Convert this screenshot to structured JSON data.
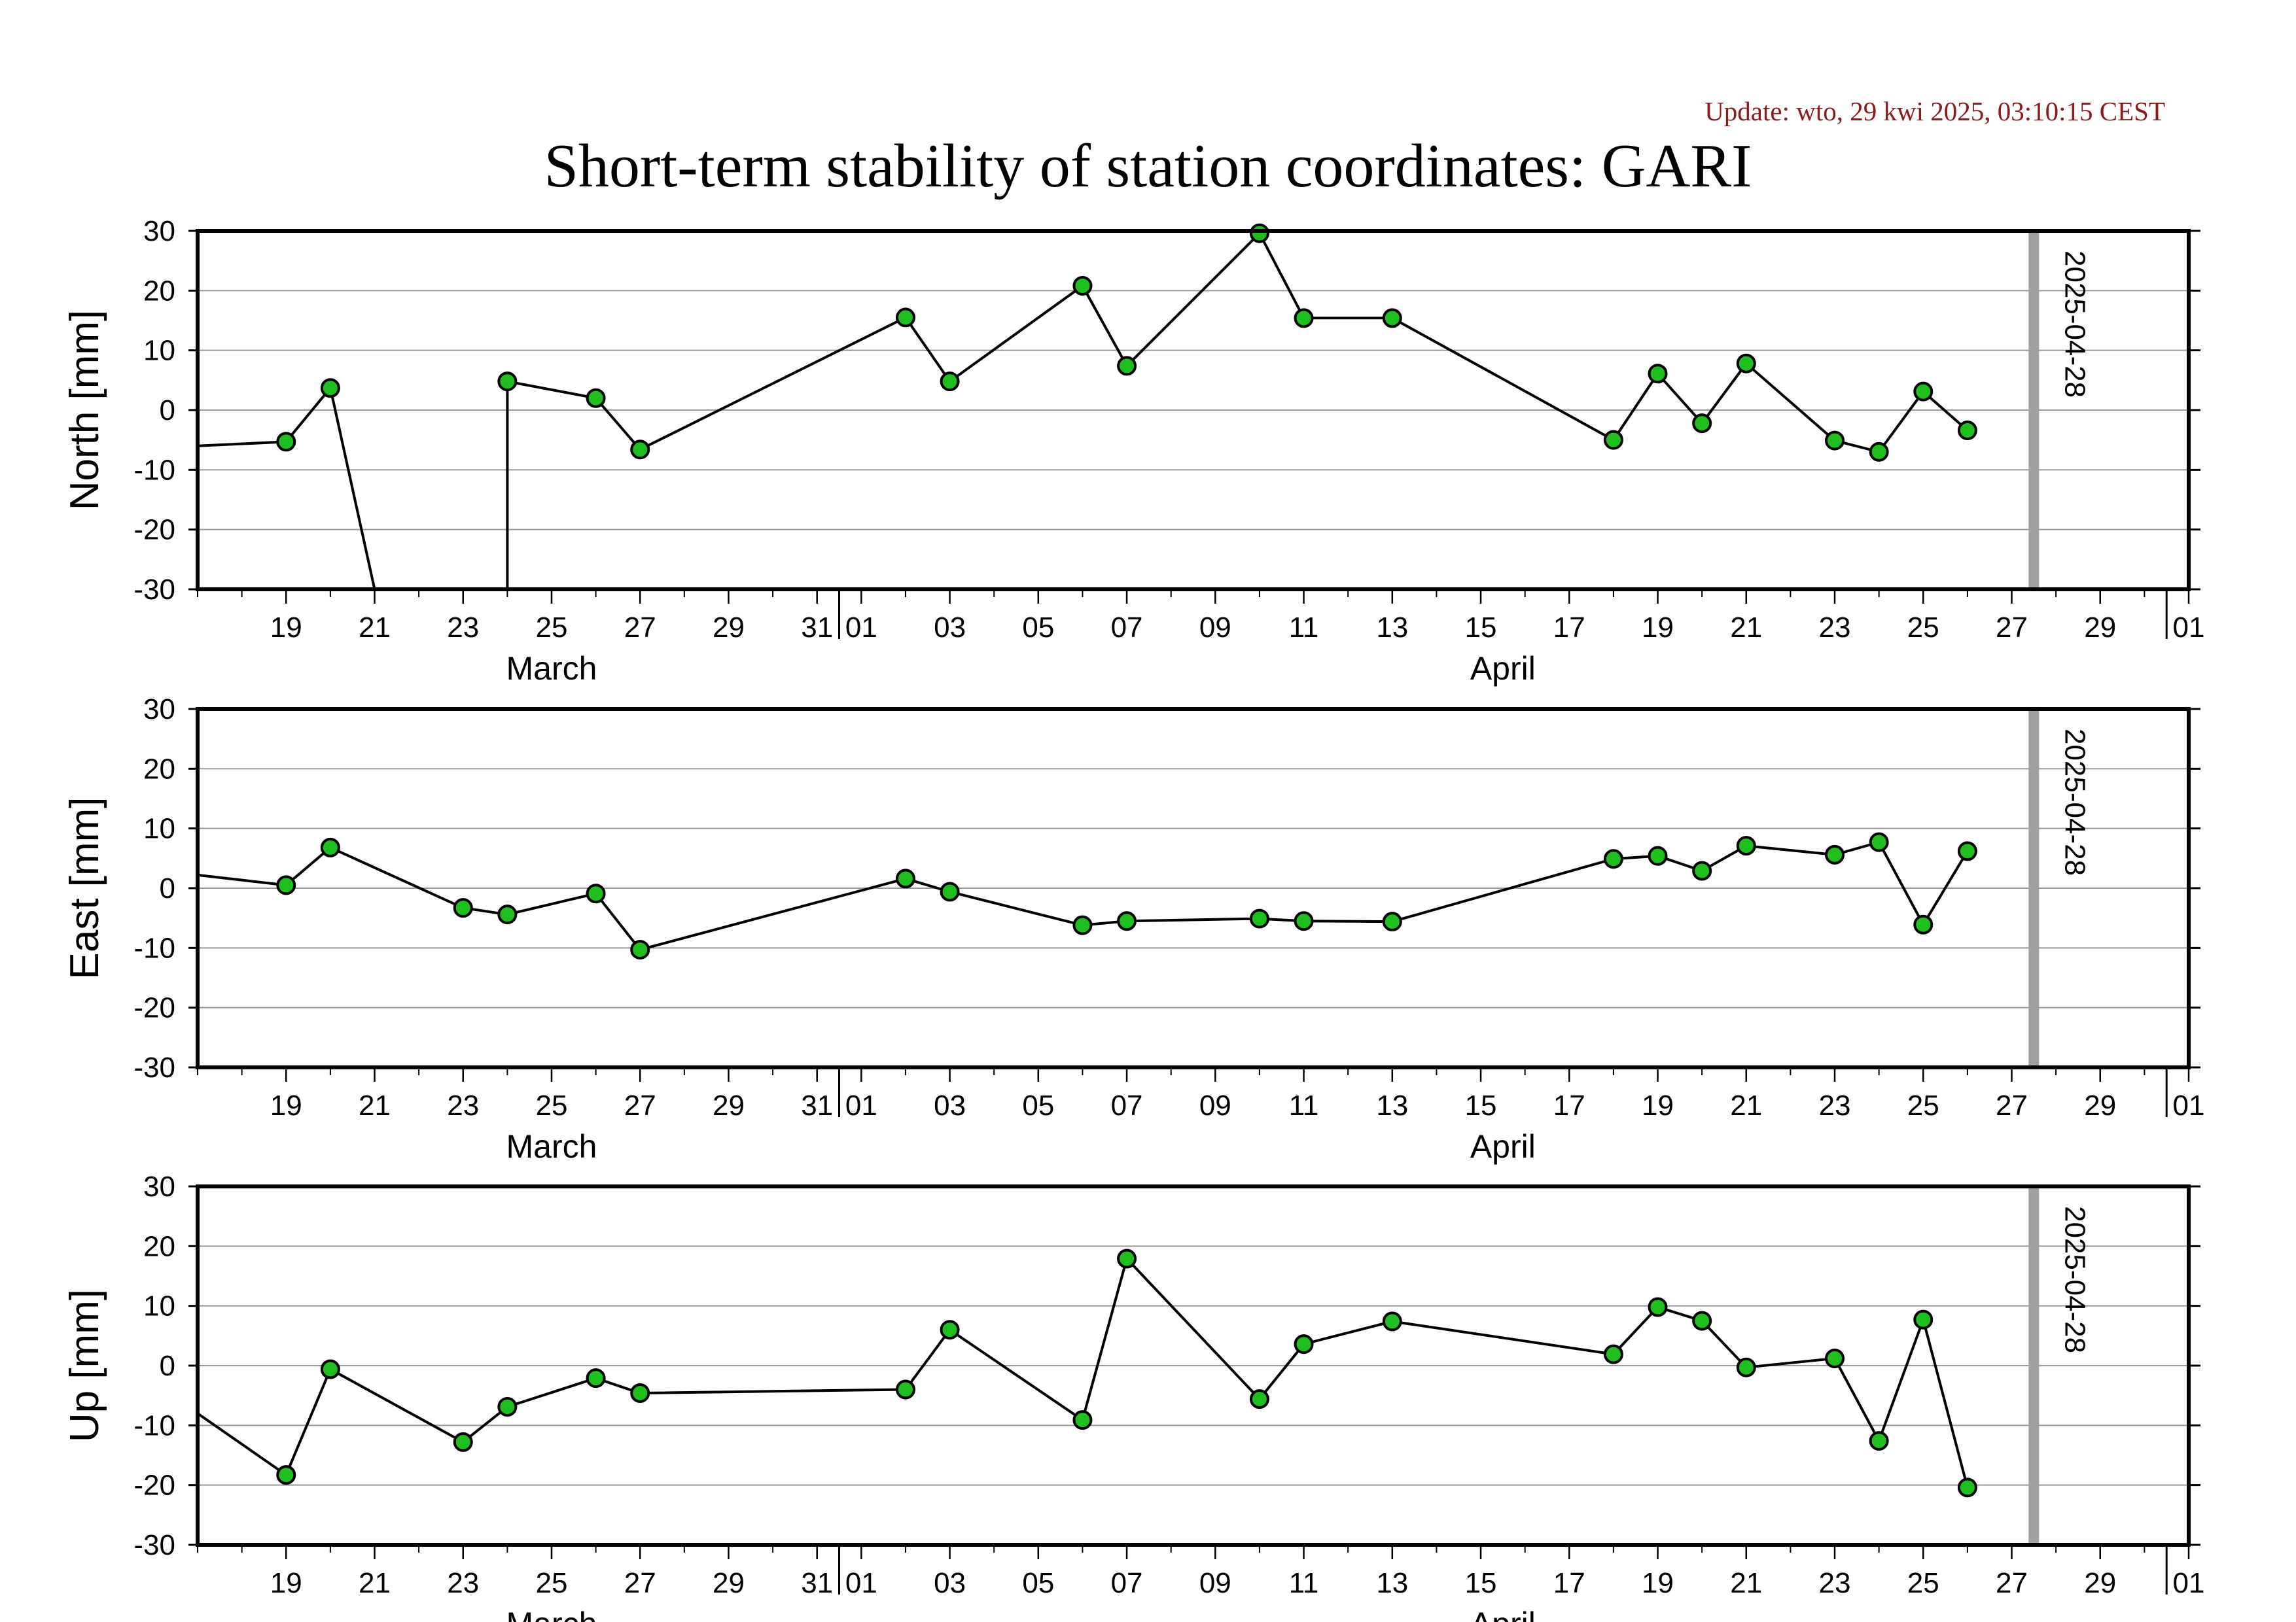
{
  "update_text": "Update: wto, 29 kwi 2025, 03:10:15 CEST",
  "title": "Short-term stability of station coordinates: GARI",
  "colors": {
    "marker_fill": "#1fbf1f",
    "marker_stroke": "#000000",
    "line": "#000000",
    "grid": "#999999",
    "current_date_line": "#a0a0a0",
    "update_text": "#8b1a1a"
  },
  "chart_data": [
    {
      "type": "line",
      "ylabel": "North [mm]",
      "ylim": [
        -30,
        30
      ],
      "yticks": [
        -30,
        -20,
        -10,
        0,
        10,
        20,
        30
      ],
      "xlim": [
        "2025-03-17",
        "2025-05-01"
      ],
      "xtick_labels": [
        "19",
        "21",
        "23",
        "25",
        "27",
        "29",
        "31",
        "01",
        "03",
        "05",
        "07",
        "09",
        "11",
        "13",
        "15",
        "17",
        "19",
        "21",
        "23",
        "25",
        "27",
        "29",
        "01"
      ],
      "month_labels": [
        "March",
        "April"
      ],
      "grid": true,
      "vline": {
        "date": "2025-04-28",
        "label": "2025-04-28"
      },
      "series": [
        {
          "x": [
            "2025-03-17",
            "2025-03-19",
            "2025-03-20",
            "2025-03-21",
            "2025-03-24",
            "2025-03-24",
            "2025-03-26",
            "2025-03-27",
            "2025-04-02",
            "2025-04-03",
            "2025-04-06",
            "2025-04-07",
            "2025-04-10",
            "2025-04-11",
            "2025-04-13",
            "2025-04-18",
            "2025-04-19",
            "2025-04-20",
            "2025-04-21",
            "2025-04-23",
            "2025-04-24",
            "2025-04-25",
            "2025-04-26"
          ],
          "y": [
            -6.0,
            -5.3,
            3.7,
            -30.0,
            -30.0,
            4.8,
            2.0,
            -6.6,
            15.5,
            4.8,
            20.8,
            7.4,
            29.6,
            15.4,
            15.4,
            -5.0,
            6.1,
            -2.2,
            7.8,
            -5.1,
            -7.0,
            3.1,
            -3.4
          ],
          "marker": [
            false,
            true,
            true,
            false,
            false,
            true,
            true,
            true,
            true,
            true,
            true,
            true,
            true,
            true,
            true,
            true,
            true,
            true,
            true,
            true,
            true,
            true,
            true
          ]
        }
      ]
    },
    {
      "type": "line",
      "ylabel": "East [mm]",
      "ylim": [
        -30,
        30
      ],
      "yticks": [
        -30,
        -20,
        -10,
        0,
        10,
        20,
        30
      ],
      "xlim": [
        "2025-03-17",
        "2025-05-01"
      ],
      "xtick_labels": [
        "19",
        "21",
        "23",
        "25",
        "27",
        "29",
        "31",
        "01",
        "03",
        "05",
        "07",
        "09",
        "11",
        "13",
        "15",
        "17",
        "19",
        "21",
        "23",
        "25",
        "27",
        "29",
        "01"
      ],
      "month_labels": [
        "March",
        "April"
      ],
      "grid": true,
      "vline": {
        "date": "2025-04-28",
        "label": "2025-04-28"
      },
      "series": [
        {
          "x": [
            "2025-03-17",
            "2025-03-19",
            "2025-03-20",
            "2025-03-23",
            "2025-03-24",
            "2025-03-26",
            "2025-03-27",
            "2025-04-02",
            "2025-04-03",
            "2025-04-06",
            "2025-04-07",
            "2025-04-10",
            "2025-04-11",
            "2025-04-13",
            "2025-04-18",
            "2025-04-19",
            "2025-04-20",
            "2025-04-21",
            "2025-04-23",
            "2025-04-24",
            "2025-04-25",
            "2025-04-26"
          ],
          "y": [
            2.2,
            0.5,
            6.8,
            -3.3,
            -4.4,
            -0.9,
            -10.3,
            1.6,
            -0.6,
            -6.2,
            -5.5,
            -5.1,
            -5.5,
            -5.6,
            4.9,
            5.4,
            2.9,
            7.1,
            5.6,
            7.7,
            -6.1,
            6.2
          ],
          "marker": [
            false,
            true,
            true,
            true,
            true,
            true,
            true,
            true,
            true,
            true,
            true,
            true,
            true,
            true,
            true,
            true,
            true,
            true,
            true,
            true,
            true,
            true
          ]
        }
      ]
    },
    {
      "type": "line",
      "ylabel": "Up [mm]",
      "ylim": [
        -30,
        30
      ],
      "yticks": [
        -30,
        -20,
        -10,
        0,
        10,
        20,
        30
      ],
      "xlim": [
        "2025-03-17",
        "2025-05-01"
      ],
      "xtick_labels": [
        "19",
        "21",
        "23",
        "25",
        "27",
        "29",
        "31",
        "01",
        "03",
        "05",
        "07",
        "09",
        "11",
        "13",
        "15",
        "17",
        "19",
        "21",
        "23",
        "25",
        "27",
        "29",
        "01"
      ],
      "month_labels": [
        "March",
        "April"
      ],
      "grid": true,
      "vline": {
        "date": "2025-04-28",
        "label": "2025-04-28"
      },
      "series": [
        {
          "x": [
            "2025-03-17",
            "2025-03-19",
            "2025-03-20",
            "2025-03-23",
            "2025-03-24",
            "2025-03-26",
            "2025-03-27",
            "2025-04-02",
            "2025-04-03",
            "2025-04-06",
            "2025-04-07",
            "2025-04-10",
            "2025-04-11",
            "2025-04-13",
            "2025-04-18",
            "2025-04-19",
            "2025-04-20",
            "2025-04-21",
            "2025-04-23",
            "2025-04-24",
            "2025-04-25",
            "2025-04-26"
          ],
          "y": [
            -8.0,
            -18.3,
            -0.6,
            -12.8,
            -6.9,
            -2.1,
            -4.6,
            -4.0,
            6.0,
            -9.1,
            17.9,
            -5.6,
            3.6,
            7.4,
            1.9,
            9.8,
            7.5,
            -0.3,
            1.2,
            -12.6,
            7.7,
            -20.4
          ],
          "marker": [
            false,
            true,
            true,
            true,
            true,
            true,
            true,
            true,
            true,
            true,
            true,
            true,
            true,
            true,
            true,
            true,
            true,
            true,
            true,
            true,
            true,
            true
          ]
        }
      ]
    }
  ]
}
